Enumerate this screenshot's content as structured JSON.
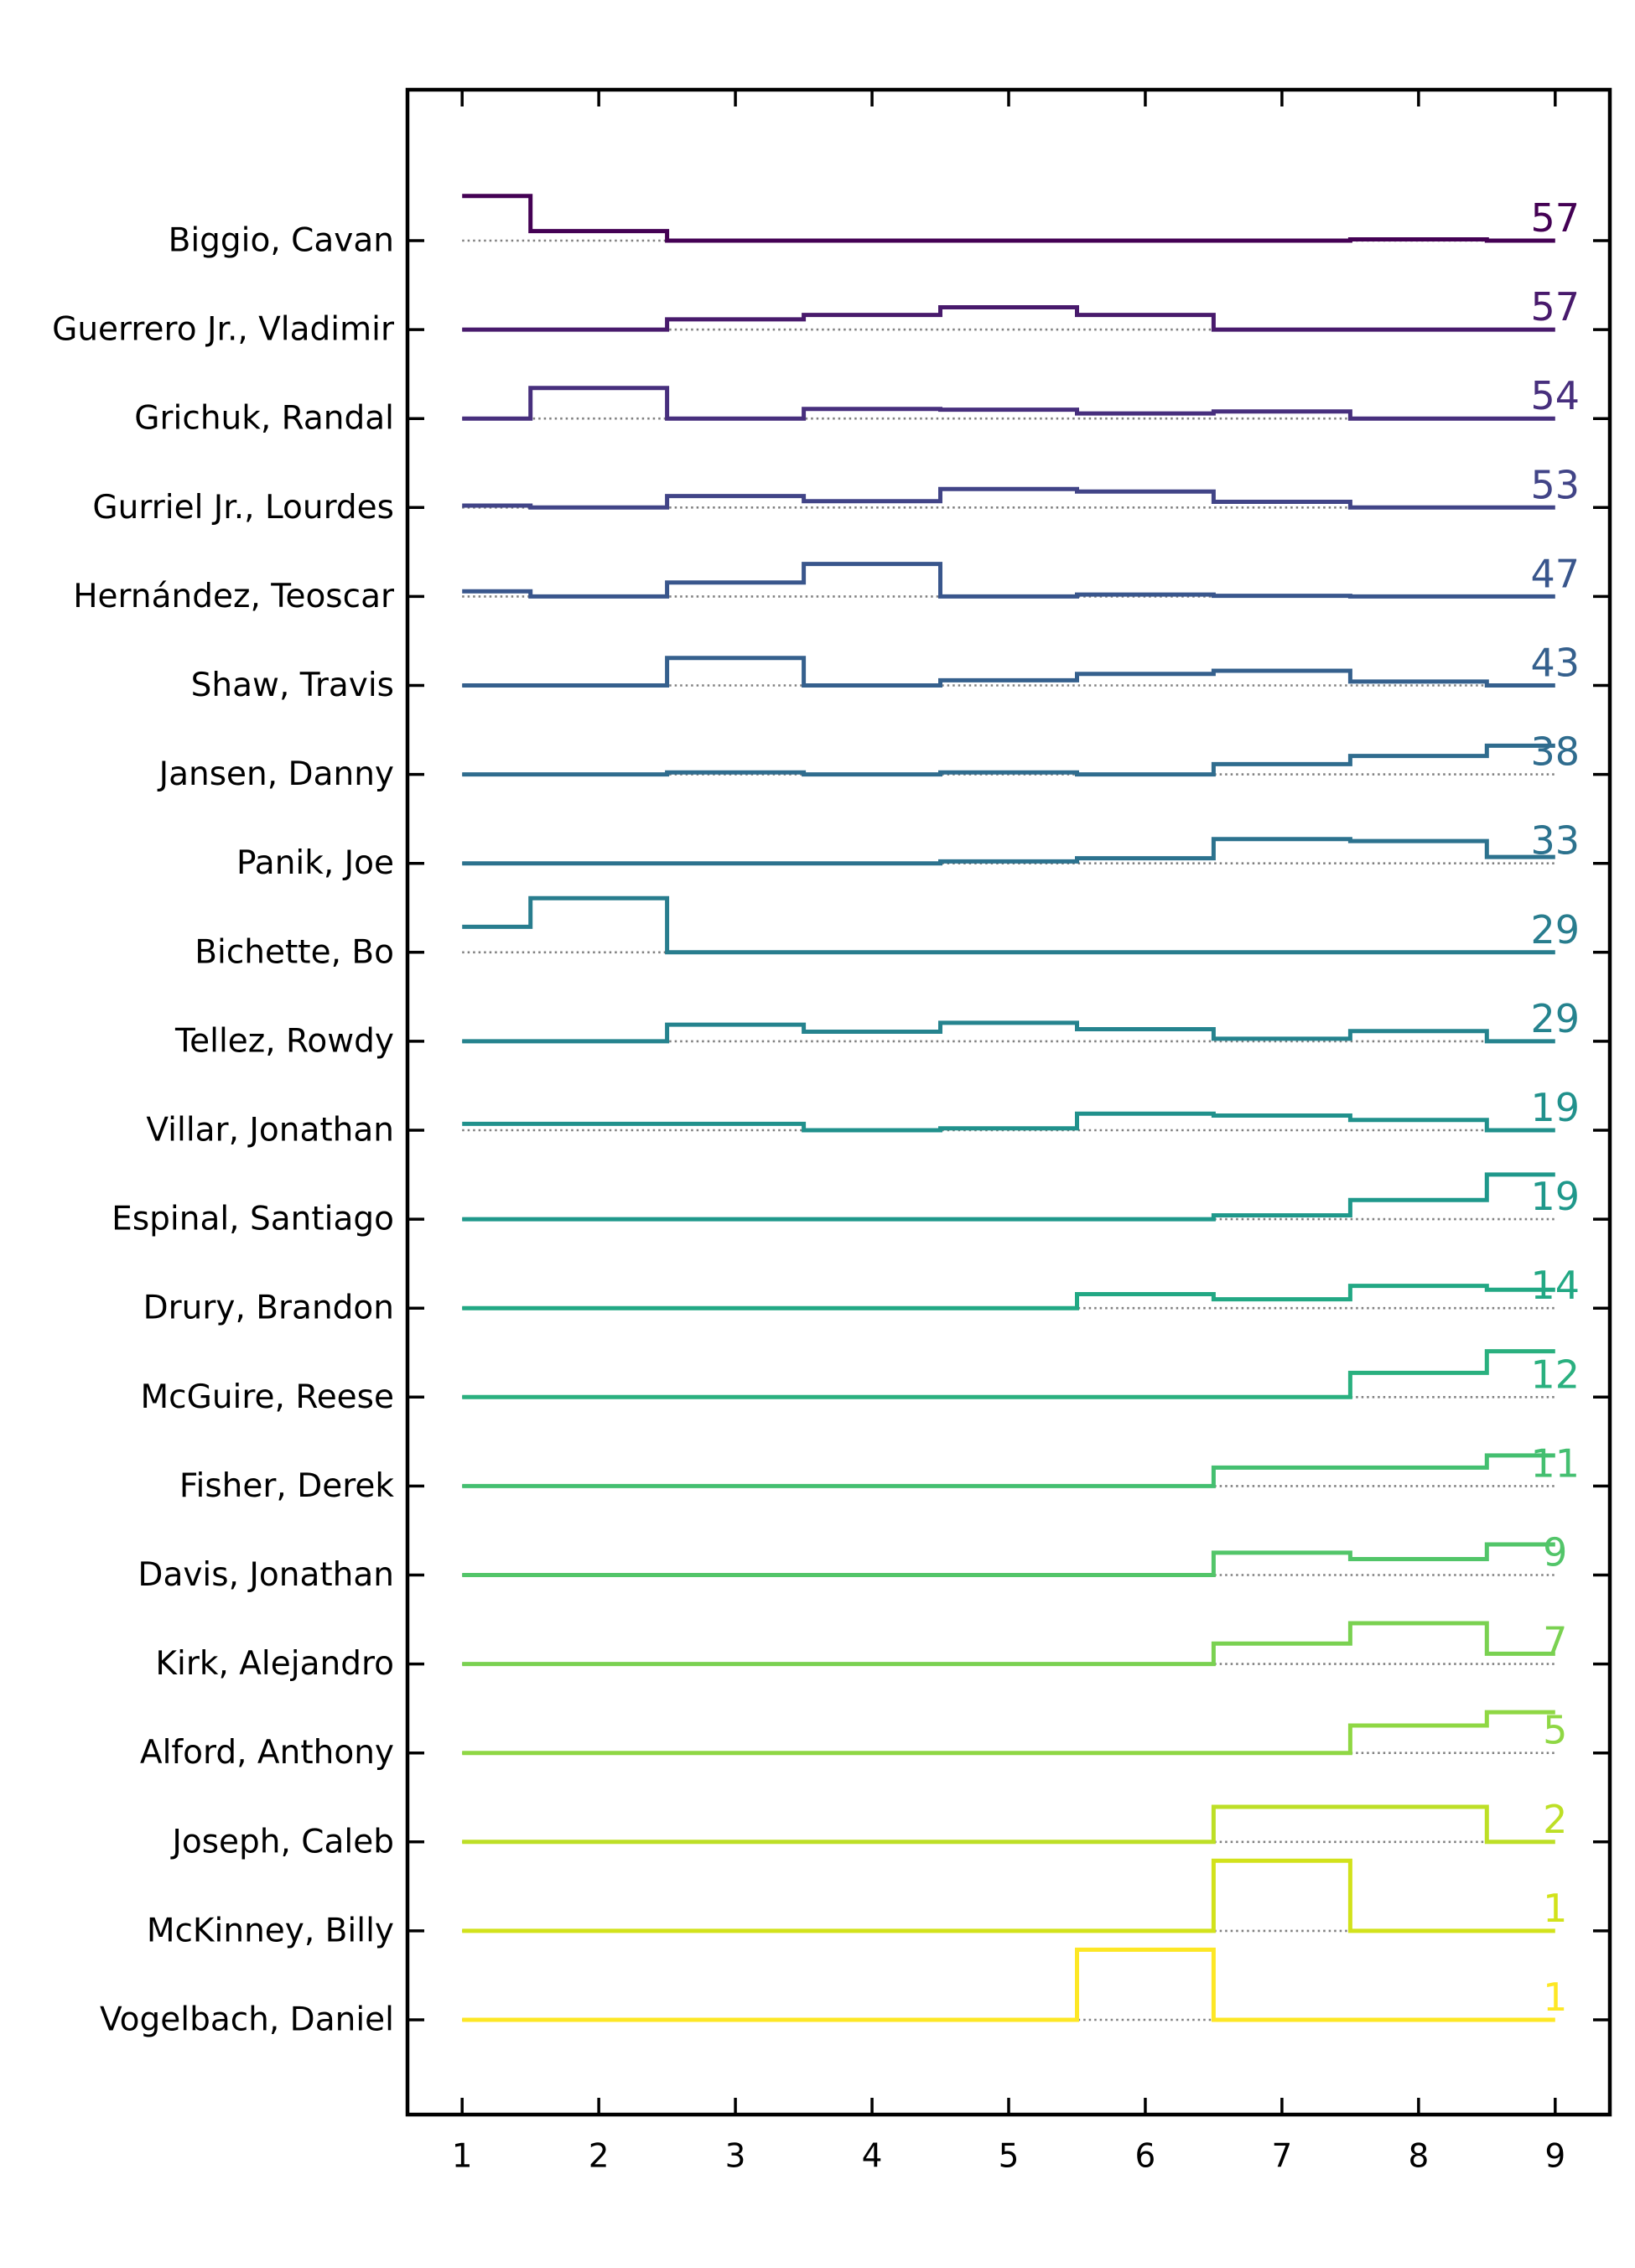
{
  "chart_data": {
    "type": "line",
    "subtype": "step-ridgeline",
    "title": "",
    "xlabel": "",
    "ylabel": "",
    "x": [
      1,
      2,
      3,
      4,
      5,
      6,
      7,
      8,
      9
    ],
    "xlim": [
      0.6,
      9.4
    ],
    "x_tick_labels": [
      "1",
      "2",
      "3",
      "4",
      "5",
      "6",
      "7",
      "8",
      "9"
    ],
    "grid": false,
    "legend": "none",
    "baseline_style": "dotted-gray",
    "series": [
      {
        "name": "Biggio, Cavan",
        "total": "57",
        "color": "#440154",
        "values": [
          0.7,
          0.15,
          0.0,
          0.0,
          0.0,
          0.0,
          0.0,
          0.02,
          0.0
        ]
      },
      {
        "name": "Guerrero Jr., Vladimir",
        "total": "57",
        "color": "#481a6c",
        "values": [
          0.0,
          0.0,
          0.16,
          0.23,
          0.35,
          0.23,
          0.0,
          0.0,
          0.0
        ]
      },
      {
        "name": "Grichuk, Randal",
        "total": "54",
        "color": "#472f7d",
        "values": [
          0.0,
          0.48,
          0.0,
          0.15,
          0.14,
          0.08,
          0.11,
          0.0,
          0.0
        ]
      },
      {
        "name": "Gurriel Jr., Lourdes",
        "total": "53",
        "color": "#414487",
        "values": [
          0.03,
          0.0,
          0.18,
          0.1,
          0.29,
          0.25,
          0.09,
          0.0,
          0.0
        ]
      },
      {
        "name": "Hernández, Teoscar",
        "total": "47",
        "color": "#39568c",
        "values": [
          0.08,
          0.0,
          0.22,
          0.51,
          0.0,
          0.03,
          0.01,
          0.0,
          0.0
        ]
      },
      {
        "name": "Shaw, Travis",
        "total": "43",
        "color": "#35608d",
        "values": [
          0.0,
          0.0,
          0.43,
          0.0,
          0.08,
          0.18,
          0.23,
          0.06,
          0.0
        ]
      },
      {
        "name": "Jansen, Danny",
        "total": "38",
        "color": "#2f6c8e",
        "values": [
          0.0,
          0.0,
          0.03,
          0.0,
          0.03,
          0.0,
          0.16,
          0.29,
          0.45
        ]
      },
      {
        "name": "Panik, Joe",
        "total": "33",
        "color": "#2c728e",
        "values": [
          0.0,
          0.0,
          0.0,
          0.0,
          0.03,
          0.08,
          0.38,
          0.35,
          0.1
        ]
      },
      {
        "name": "Bichette, Bo",
        "total": "29",
        "color": "#287d8e",
        "values": [
          0.4,
          0.85,
          0.0,
          0.0,
          0.0,
          0.0,
          0.0,
          0.0,
          0.0
        ]
      },
      {
        "name": "Tellez, Rowdy",
        "total": "29",
        "color": "#25838e",
        "values": [
          0.0,
          0.0,
          0.26,
          0.15,
          0.29,
          0.19,
          0.04,
          0.16,
          0.0
        ]
      },
      {
        "name": "Villar, Jonathan",
        "total": "19",
        "color": "#21918c",
        "values": [
          0.1,
          0.1,
          0.1,
          0.0,
          0.03,
          0.26,
          0.23,
          0.16,
          0.0
        ]
      },
      {
        "name": "Espinal, Santiago",
        "total": "19",
        "color": "#1f988b",
        "values": [
          0.0,
          0.0,
          0.0,
          0.0,
          0.0,
          0.0,
          0.06,
          0.3,
          0.7
        ]
      },
      {
        "name": "Drury, Brandon",
        "total": "14",
        "color": "#22a884",
        "values": [
          0.0,
          0.0,
          0.0,
          0.0,
          0.0,
          0.22,
          0.14,
          0.35,
          0.29
        ]
      },
      {
        "name": "McGuire, Reese",
        "total": "12",
        "color": "#2ab07f",
        "values": [
          0.0,
          0.0,
          0.0,
          0.0,
          0.0,
          0.0,
          0.0,
          0.38,
          0.72
        ]
      },
      {
        "name": "Fisher, Derek",
        "total": "11",
        "color": "#44bf70",
        "values": [
          0.0,
          0.0,
          0.0,
          0.0,
          0.0,
          0.0,
          0.29,
          0.29,
          0.48
        ]
      },
      {
        "name": "Davis, Jonathan",
        "total": "9",
        "color": "#52c569",
        "values": [
          0.0,
          0.0,
          0.0,
          0.0,
          0.0,
          0.0,
          0.35,
          0.25,
          0.48
        ]
      },
      {
        "name": "Kirk, Alejandro",
        "total": "7",
        "color": "#7ad151",
        "values": [
          0.0,
          0.0,
          0.0,
          0.0,
          0.0,
          0.0,
          0.32,
          0.64,
          0.16
        ]
      },
      {
        "name": "Alford, Anthony",
        "total": "5",
        "color": "#8fd744",
        "values": [
          0.0,
          0.0,
          0.0,
          0.0,
          0.0,
          0.0,
          0.0,
          0.43,
          0.64
        ]
      },
      {
        "name": "Joseph, Caleb",
        "total": "2",
        "color": "#bddf26",
        "values": [
          0.0,
          0.0,
          0.0,
          0.0,
          0.0,
          0.0,
          0.55,
          0.55,
          0.0
        ]
      },
      {
        "name": "McKinney, Billy",
        "total": "1",
        "color": "#d2e21b",
        "values": [
          0.0,
          0.0,
          0.0,
          0.0,
          0.0,
          0.0,
          1.1,
          0.0,
          0.0
        ]
      },
      {
        "name": "Vogelbach, Daniel",
        "total": "1",
        "color": "#fde725",
        "values": [
          0.0,
          0.0,
          0.0,
          0.0,
          0.0,
          1.1,
          0.0,
          0.0,
          0.0
        ]
      }
    ]
  }
}
